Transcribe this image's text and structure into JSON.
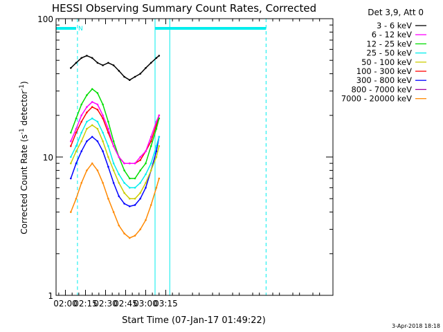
{
  "chart_data": {
    "type": "line",
    "title": "HESSI Observing Summary Count Rates, Corrected",
    "xlabel": "Start Time (07-Jan-17 01:49:22)",
    "ylabel": "Corrected Count Rate (s",
    "ylabel_sup": "-1",
    "ylabel_mid": " detector",
    "ylabel_end": ")",
    "y_scale": "log",
    "ylim": [
      1,
      100
    ],
    "xlim_minutes": [
      -7,
      200
    ],
    "x_tick_labels": [
      {
        "label": "02:00",
        "minute": 0
      },
      {
        "label": "02:15",
        "minute": 15
      },
      {
        "label": "02:30",
        "minute": 30
      },
      {
        "label": "02:45",
        "minute": 45
      },
      {
        "label": "03:00",
        "minute": 60
      },
      {
        "label": "03:15",
        "minute": 75
      }
    ],
    "y_tick_labels": [
      {
        "label": "1",
        "value": 1
      },
      {
        "label": "10",
        "value": 10
      },
      {
        "label": "100",
        "value": 100
      }
    ],
    "legend_header": "Det 3,9, Att 0",
    "legend_placement": "right",
    "series": [
      {
        "name": "3 - 6 keV",
        "color": "#000000",
        "x": [
          4,
          8,
          12,
          16,
          20,
          24,
          28,
          32,
          36,
          40,
          44,
          48,
          52,
          56,
          60,
          64,
          68,
          70
        ],
        "y": [
          44,
          48,
          52,
          54,
          52,
          48,
          46,
          48,
          46,
          42,
          38,
          36,
          38,
          40,
          44,
          48,
          52,
          54
        ]
      },
      {
        "name": "6 - 12 keV",
        "color": "#ff00ff",
        "x": [
          4,
          8,
          12,
          16,
          20,
          24,
          28,
          32,
          36,
          40,
          44,
          48,
          52,
          56,
          60,
          64,
          68,
          70
        ],
        "y": [
          13,
          16,
          20,
          23,
          25,
          24,
          20,
          16,
          12,
          10,
          9,
          9,
          9,
          10,
          11,
          14,
          18,
          20
        ]
      },
      {
        "name": "12 - 25 keV",
        "color": "#00dd00",
        "x": [
          4,
          8,
          12,
          16,
          20,
          24,
          28,
          32,
          36,
          40,
          44,
          48,
          52,
          56,
          60,
          64,
          68,
          70
        ],
        "y": [
          15,
          19,
          24,
          28,
          31,
          29,
          24,
          18,
          13,
          10,
          8,
          7,
          7,
          8,
          9,
          12,
          16,
          19
        ]
      },
      {
        "name": "25 - 50 keV",
        "color": "#00eeee",
        "x": [
          4,
          8,
          12,
          16,
          20,
          24,
          28,
          32,
          36,
          40,
          44,
          48,
          52,
          56,
          60,
          64,
          68,
          70
        ],
        "y": [
          10,
          12,
          15,
          18,
          19,
          18,
          15,
          12,
          9,
          7.5,
          6.5,
          6,
          6,
          6.5,
          7.5,
          9,
          12,
          14
        ]
      },
      {
        "name": "50 - 100 keV",
        "color": "#cccc00",
        "x": [
          4,
          8,
          12,
          16,
          20,
          24,
          28,
          32,
          36,
          40,
          44,
          48,
          52,
          56,
          60,
          64,
          68,
          70
        ],
        "y": [
          9,
          11,
          13,
          16,
          17,
          16,
          13,
          10,
          8,
          6.5,
          5.5,
          5,
          5,
          5.5,
          6.5,
          8,
          10,
          12
        ]
      },
      {
        "name": "100 - 300 keV",
        "color": "#ff0000",
        "x": [
          4,
          8,
          12,
          16,
          20,
          24,
          28,
          32,
          36,
          40,
          44,
          48,
          52,
          56,
          60,
          64,
          68,
          70
        ],
        "y": [
          12,
          15,
          18,
          21,
          23,
          22,
          19,
          15,
          12,
          10,
          9,
          9,
          9,
          9.5,
          11,
          13,
          17,
          20
        ]
      },
      {
        "name": "300 - 800 keV",
        "color": "#0000ff",
        "x": [
          4,
          8,
          12,
          16,
          20,
          24,
          28,
          32,
          36,
          40,
          44,
          48,
          52,
          56,
          60,
          64,
          68,
          70
        ],
        "y": [
          7,
          9,
          11,
          13,
          14,
          13,
          11,
          8.5,
          6.5,
          5.2,
          4.6,
          4.4,
          4.5,
          5,
          6,
          8,
          11,
          14
        ]
      },
      {
        "name": "800 - 7000 keV",
        "color": "#a000a0",
        "x": [],
        "y": []
      },
      {
        "name": "7000 - 20000 keV",
        "color": "#ff8800",
        "x": [
          4,
          8,
          12,
          16,
          20,
          24,
          28,
          32,
          36,
          40,
          44,
          48,
          52,
          56,
          60,
          64,
          68,
          70
        ],
        "y": [
          4,
          5,
          6.5,
          8,
          9,
          8,
          6.5,
          5,
          4,
          3.2,
          2.8,
          2.6,
          2.7,
          3,
          3.5,
          4.5,
          6,
          7
        ]
      }
    ],
    "vertical_markers_minutes": [
      -7,
      9,
      67,
      78,
      150
    ],
    "vertical_marker_styles": [
      "solid",
      "dashed",
      "solid",
      "solid",
      "dashed"
    ],
    "flag_bars": [
      {
        "label": "N",
        "x_start_minute": -7,
        "x_end_minute": 8,
        "color": "#00eeee"
      },
      {
        "label": "",
        "x_start_minute": 67,
        "x_end_minute": 150,
        "color": "#00eeee"
      }
    ]
  },
  "footer": {
    "timestamp": "3-Apr-2018 18:18"
  }
}
